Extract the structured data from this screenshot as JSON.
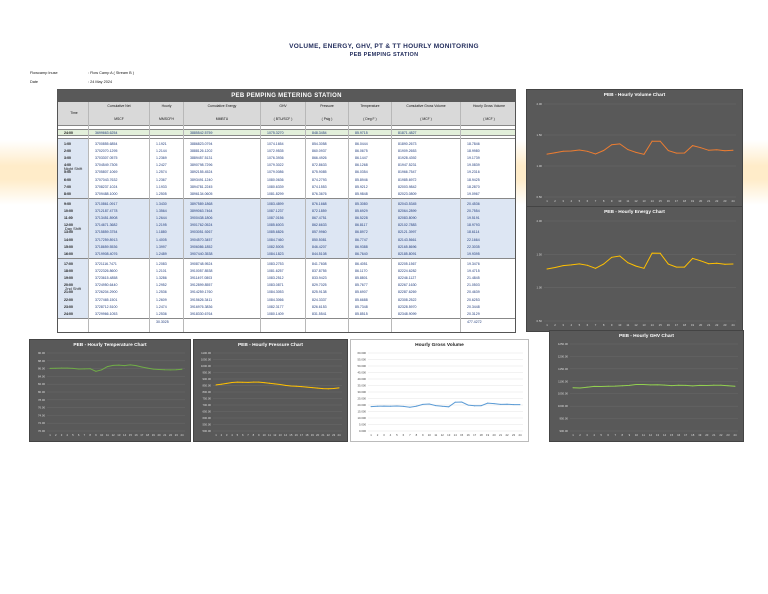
{
  "header": {
    "title": "VOLUME, ENERGY, GHV, PT & TT HOURLY MONITORING",
    "subtitle": "PEB PEMPING STATION"
  },
  "meta": {
    "flowcamp_label": "Flowcamp Inuse",
    "flowcamp_value": ": Flow Camp A ( Stream B )",
    "date_label": "Date",
    "date_value": ": 24 May 2024"
  },
  "table": {
    "title": "PEB PEMPING METERING STATION",
    "headers": {
      "time": "Time",
      "cum_net": "Cumulative Net",
      "cum_net_unit": "MSCF",
      "hourly": "Hourly",
      "hourly_unit": "MMSCFH",
      "cum_energy": "Cumulative Energy",
      "cum_energy_unit": "MMBTU",
      "ghv": "GHV",
      "ghv_unit": "( BTU/SCF )",
      "pressure": "Pressure",
      "pressure_unit": "( Psig )",
      "temperature": "Temperature",
      "temperature_unit": "( Deg F )",
      "cum_gross": "Cumulative Gross Volume",
      "cum_gross_unit": "( MCF )",
      "hourly_gross": "Hourly Gross Volume",
      "hourly_gross_unit": "( MCF )"
    },
    "base_row": {
      "time": "24:00",
      "cum_net": "3699663.6254",
      "hourly": "",
      "cum_energy": "3885542.5759",
      "ghv": "1075.3270",
      "pressure": "848.3454",
      "temperature": "85.9715",
      "cum_gross": "81871.4827",
      "hourly_gross": ""
    },
    "shifts": [
      {
        "label": "Night Shift",
        "rows": [
          {
            "time": "1:00",
            "cum_net": "3700855.6854",
            "hourly": "1.1921",
            "cum_energy": "3886823.0794",
            "ghv": "1074.1654",
            "pressure": "854.3058",
            "temperature": "86.0444",
            "cum_gross": "81890.2673",
            "hourly_gross": "18.7846"
          },
          {
            "time": "2:00",
            "cum_net": "3702070.1295",
            "hourly": "1.2144",
            "cum_energy": "3888126.1202",
            "ghv": "1072.9535",
            "pressure": "860.0937",
            "temperature": "86.0675",
            "cum_gross": "81909.2653",
            "hourly_gross": "18.9980"
          },
          {
            "time": "3:00",
            "cum_net": "3703307.0575",
            "hourly": "1.2369",
            "cum_energy": "3889457.5131",
            "ghv": "1076.3936",
            "pressure": "866.4926",
            "temperature": "86.1447",
            "cum_gross": "81928.4392",
            "hourly_gross": "19.1739"
          },
          {
            "time": "4:00",
            "cum_net": "3704549.7305",
            "hourly": "1.2427",
            "cum_energy": "3890798.7296",
            "ghv": "1079.3022",
            "pressure": "872.8633",
            "temperature": "86.1268",
            "cum_gross": "81947.5231",
            "hourly_gross": "19.0839"
          },
          {
            "time": "5:00",
            "cum_net": "3705807.1069",
            "hourly": "1.2574",
            "cum_energy": "3892155.4524",
            "ghv": "1079.0086",
            "pressure": "875.9085",
            "temperature": "86.0354",
            "cum_gross": "81966.7547",
            "hourly_gross": "19.2316"
          },
          {
            "time": "6:00",
            "cum_net": "3707043.7632",
            "hourly": "1.2367",
            "cum_energy": "3893491.1240",
            "ghv": "1080.0636",
            "pressure": "874.2793",
            "temperature": "85.8946",
            "cum_gross": "81985.6972",
            "hourly_gross": "18.9425"
          },
          {
            "time": "7:00",
            "cum_net": "3708237.1024",
            "hourly": "1.1933",
            "cum_energy": "3894781.2245",
            "ghv": "1080.6339",
            "pressure": "874.1553",
            "temperature": "85.9212",
            "cum_gross": "82003.9842",
            "hourly_gross": "18.2870"
          },
          {
            "time": "8:00",
            "cum_net": "3709488.1000",
            "hourly": "1.2505",
            "cum_energy": "3896134.0605",
            "ghv": "1081.8299",
            "pressure": "876.3676",
            "temperature": "85.9848",
            "cum_gross": "82023.0809",
            "hourly_gross": "19.0967"
          }
        ]
      },
      {
        "label": "Day Shift",
        "rows": [
          {
            "time": "9:00",
            "cum_net": "3710861.0917",
            "hourly": "1.3430",
            "cum_energy": "3897589.1868",
            "ghv": "1083.4899",
            "pressure": "876.1668",
            "temperature": "85.3080",
            "cum_gross": "82043.5345",
            "hourly_gross": "20.4536"
          },
          {
            "time": "10:00",
            "cum_net": "3712187.4778",
            "hourly": "1.3564",
            "cum_energy": "3899063.7464",
            "ghv": "1087.1237",
            "pressure": "872.1859",
            "temperature": "85.6929",
            "cum_gross": "82064.2899",
            "hourly_gross": "20.7554"
          },
          {
            "time": "11:00",
            "cum_net": "3713451.8908",
            "hourly": "1.2644",
            "cum_energy": "3900438.1806",
            "ghv": "1087.0156",
            "pressure": "867.4751",
            "temperature": "86.5228",
            "cum_gross": "82083.8090",
            "hourly_gross": "19.5191"
          },
          {
            "time": "12:00",
            "cum_net": "3714671.3682",
            "hourly": "1.2195",
            "cum_energy": "3901762.0524",
            "ghv": "1085.6003",
            "pressure": "862.6633",
            "temperature": "86.8117",
            "cum_gross": "82102.7883",
            "hourly_gross": "18.9793"
          },
          {
            "time": "13:00",
            "cum_net": "3715859.3754",
            "hourly": "1.1880",
            "cum_energy": "3903051.9267",
            "ghv": "1085.6826",
            "pressure": "857.9960",
            "temperature": "86.8972",
            "cum_gross": "82121.3997",
            "hourly_gross": "18.6114"
          },
          {
            "time": "14:00",
            "cum_net": "3717259.8913",
            "hourly": "1.4005",
            "cum_energy": "3904570.3457",
            "ghv": "1084.7460",
            "pressure": "850.5081",
            "temperature": "86.7747",
            "cum_gross": "82143.5661",
            "hourly_gross": "22.1664"
          },
          {
            "time": "15:00",
            "cum_net": "3718659.5536",
            "hourly": "1.3997",
            "cum_energy": "3906086.1852",
            "ghv": "1082.5005",
            "pressure": "846.4207",
            "temperature": "86.9388",
            "cum_gross": "82165.8696",
            "hourly_gross": "22.3035"
          },
          {
            "time": "16:00",
            "cum_net": "3719908.4076",
            "hourly": "1.2489",
            "cum_energy": "3907440.3538",
            "ghv": "1084.1823",
            "pressure": "844.5108",
            "temperature": "86.7640",
            "cum_gross": "82185.8091",
            "hourly_gross": "19.9395"
          }
        ]
      },
      {
        "label": "2nd Shift",
        "rows": [
          {
            "time": "17:00",
            "cum_net": "3721116.7471",
            "hourly": "1.2083",
            "cum_energy": "3908748.9524",
            "ghv": "1083.2753",
            "pressure": "841.7608",
            "temperature": "86.4051",
            "cum_gross": "82205.1567",
            "hourly_gross": "19.3476"
          },
          {
            "time": "18:00",
            "cum_net": "3722326.8600",
            "hourly": "1.2101",
            "cum_energy": "3910057.8538",
            "ghv": "1081.6257",
            "pressure": "837.8755",
            "temperature": "86.1170",
            "cum_gross": "82224.6282",
            "hourly_gross": "19.4715"
          },
          {
            "time": "19:00",
            "cum_net": "3723615.4858",
            "hourly": "1.3286",
            "cum_energy": "3911497.0803",
            "ghv": "1083.2512",
            "pressure": "833.9423",
            "temperature": "85.8801",
            "cum_gross": "82246.1127",
            "hourly_gross": "21.4845"
          },
          {
            "time": "20:00",
            "cum_net": "3724950.6440",
            "hourly": "1.2952",
            "cum_energy": "3912899.8557",
            "ghv": "1083.0871",
            "pressure": "829.7025",
            "temperature": "85.7677",
            "cum_gross": "82267.1630",
            "hourly_gross": "21.0503"
          },
          {
            "time": "21:00",
            "cum_net": "3726204.2900",
            "hourly": "1.2536",
            "cum_energy": "3914259.1760",
            "ghv": "1084.3053",
            "pressure": "825.9138",
            "temperature": "85.6907",
            "cum_gross": "82287.6269",
            "hourly_gross": "20.4639"
          },
          {
            "time": "22:00",
            "cum_net": "3727465.1501",
            "hourly": "1.2609",
            "cum_energy": "3915626.3411",
            "ghv": "1084.3066",
            "pressure": "824.3337",
            "temperature": "85.6688",
            "cum_gross": "82308.2522",
            "hourly_gross": "20.6253"
          },
          {
            "time": "23:00",
            "cum_net": "3728712.5100",
            "hourly": "1.2474",
            "cum_energy": "3916976.3836",
            "ghv": "1082.3177",
            "pressure": "826.6153",
            "temperature": "85.7348",
            "cum_gross": "82328.5970",
            "hourly_gross": "20.3448"
          },
          {
            "time": "24:00",
            "cum_net": "3729966.1053",
            "hourly": "1.2536",
            "cum_energy": "3918330.6764",
            "ghv": "1080.1409",
            "pressure": "831.5541",
            "temperature": "85.8515",
            "cum_gross": "82348.9099",
            "hourly_gross": "20.3129"
          }
        ]
      }
    ],
    "totals": {
      "hourly": "30.3025",
      "hourly_gross": "477.4272"
    }
  },
  "chart_data": [
    {
      "type": "line",
      "title": "PEB - Hourly Volume Chart",
      "x": [
        1,
        2,
        3,
        4,
        5,
        6,
        7,
        8,
        9,
        10,
        11,
        12,
        13,
        14,
        15,
        16,
        17,
        18,
        19,
        20,
        21,
        22,
        23,
        24
      ],
      "series": [
        {
          "values": [
            1.1921,
            1.2144,
            1.2369,
            1.2427,
            1.2574,
            1.2367,
            1.1933,
            1.2505,
            1.343,
            1.3564,
            1.2644,
            1.2195,
            1.188,
            1.4005,
            1.3997,
            1.2489,
            1.2083,
            1.2101,
            1.3286,
            1.2952,
            1.2536,
            1.2609,
            1.2474,
            1.2536
          ]
        }
      ],
      "ytick_labels": [
        "2.00",
        "1.50",
        "1.00",
        "0.50"
      ],
      "ylim": [
        0.5,
        2.0
      ],
      "line_color": "#ed7d31",
      "background": "#595959"
    },
    {
      "type": "line",
      "title": "PEB - Hourly Energy Chart",
      "x": [
        1,
        2,
        3,
        4,
        5,
        6,
        7,
        8,
        9,
        10,
        11,
        12,
        13,
        14,
        15,
        16,
        17,
        18,
        19,
        20,
        21,
        22,
        23,
        24
      ],
      "series": [
        {
          "values": [
            1280.6,
            1303.0,
            1331.4,
            1341.2,
            1356.7,
            1335.7,
            1290.1,
            1352.8,
            1455.1,
            1474.6,
            1374.4,
            1323.9,
            1289.9,
            1518.4,
            1515.8,
            1354.2,
            1308.6,
            1308.9,
            1439.2,
            1402.8,
            1359.3,
            1367.2,
            1350.0,
            1354.3
          ]
        }
      ],
      "ytick_labels": [
        "2.00",
        "1.50",
        "1.00",
        "0.50"
      ],
      "ylim": [
        500,
        2000
      ],
      "line_color": "#ffc000",
      "background": "#595959"
    },
    {
      "type": "line",
      "title": "PEB - Hourly Temperature Chart",
      "x": [
        1,
        2,
        3,
        4,
        5,
        6,
        7,
        8,
        9,
        10,
        11,
        12,
        13,
        14,
        15,
        16,
        17,
        18,
        19,
        20,
        21,
        22,
        23,
        24
      ],
      "series": [
        {
          "values": [
            86.04,
            86.07,
            86.14,
            86.13,
            86.04,
            85.89,
            85.92,
            85.98,
            85.31,
            85.69,
            86.52,
            86.81,
            86.9,
            86.77,
            86.94,
            86.76,
            86.41,
            86.12,
            85.88,
            85.77,
            85.69,
            85.67,
            85.73,
            85.85
          ]
        }
      ],
      "ytick_labels": [
        "90.00",
        "88.00",
        "86.00",
        "84.00",
        "82.00",
        "80.00",
        "78.00",
        "76.00",
        "74.00",
        "72.00",
        "70.00"
      ],
      "ylim": [
        70,
        90
      ],
      "line_color": "#70ad47",
      "background": "#595959"
    },
    {
      "type": "line",
      "title": "PEB - Hourly Pressure Chart",
      "x": [
        1,
        2,
        3,
        4,
        5,
        6,
        7,
        8,
        9,
        10,
        11,
        12,
        13,
        14,
        15,
        16,
        17,
        18,
        19,
        20,
        21,
        22,
        23,
        24
      ],
      "series": [
        {
          "values": [
            854.31,
            860.09,
            866.49,
            872.86,
            875.91,
            874.28,
            874.16,
            876.37,
            876.17,
            872.19,
            867.48,
            862.66,
            858.0,
            850.51,
            846.42,
            844.51,
            841.76,
            837.88,
            833.94,
            829.7,
            825.91,
            824.33,
            826.62,
            831.55
          ]
        }
      ],
      "ytick_labels": [
        "1100.00",
        "1050.00",
        "1000.00",
        "950.00",
        "900.00",
        "850.00",
        "800.00",
        "750.00",
        "700.00",
        "650.00",
        "600.00",
        "550.00",
        "500.00"
      ],
      "ylim": [
        500,
        1100
      ],
      "line_color": "#ffc000",
      "background": "#595959"
    },
    {
      "type": "line",
      "title": "Hourly Gross Volume",
      "x": [
        1,
        2,
        3,
        4,
        5,
        6,
        7,
        8,
        9,
        10,
        11,
        12,
        13,
        14,
        15,
        16,
        17,
        18,
        19,
        20,
        21,
        22,
        23,
        24
      ],
      "series": [
        {
          "values": [
            18.7846,
            18.998,
            19.1739,
            19.0839,
            19.2316,
            18.9425,
            18.287,
            19.0967,
            20.4536,
            20.7554,
            19.5191,
            18.9793,
            18.6114,
            22.1664,
            22.3035,
            19.9395,
            19.3476,
            19.4715,
            21.4845,
            21.0503,
            20.4639,
            20.6253,
            20.3448,
            20.3129
          ]
        }
      ],
      "ytick_labels": [
        "60.000",
        "55.000",
        "50.000",
        "45.000",
        "40.000",
        "35.000",
        "30.000",
        "25.000",
        "20.000",
        "15.000",
        "10.000",
        "5.000",
        "0.000"
      ],
      "ylim": [
        0,
        60
      ],
      "line_color": "#5b9bd5",
      "background": "#ffffff"
    },
    {
      "type": "line",
      "title": "PEB - Hourly GHV Chart",
      "x": [
        1,
        2,
        3,
        4,
        5,
        6,
        7,
        8,
        9,
        10,
        11,
        12,
        13,
        14,
        15,
        16,
        17,
        18,
        19,
        20,
        21,
        22,
        23,
        24
      ],
      "series": [
        {
          "values": [
            1074.17,
            1072.95,
            1076.39,
            1079.3,
            1079.01,
            1080.06,
            1080.63,
            1081.83,
            1083.49,
            1087.12,
            1087.02,
            1085.6,
            1085.68,
            1084.75,
            1082.5,
            1084.18,
            1083.28,
            1081.63,
            1083.25,
            1083.09,
            1084.31,
            1084.31,
            1082.32,
            1080.14
          ]
        }
      ],
      "ytick_labels": [
        "1250.00",
        "1200.00",
        "1150.00",
        "1100.00",
        "1050.00",
        "1000.00",
        "950.00",
        "900.00"
      ],
      "ylim": [
        900,
        1250
      ],
      "line_color": "#92d050",
      "background": "#595959"
    }
  ]
}
